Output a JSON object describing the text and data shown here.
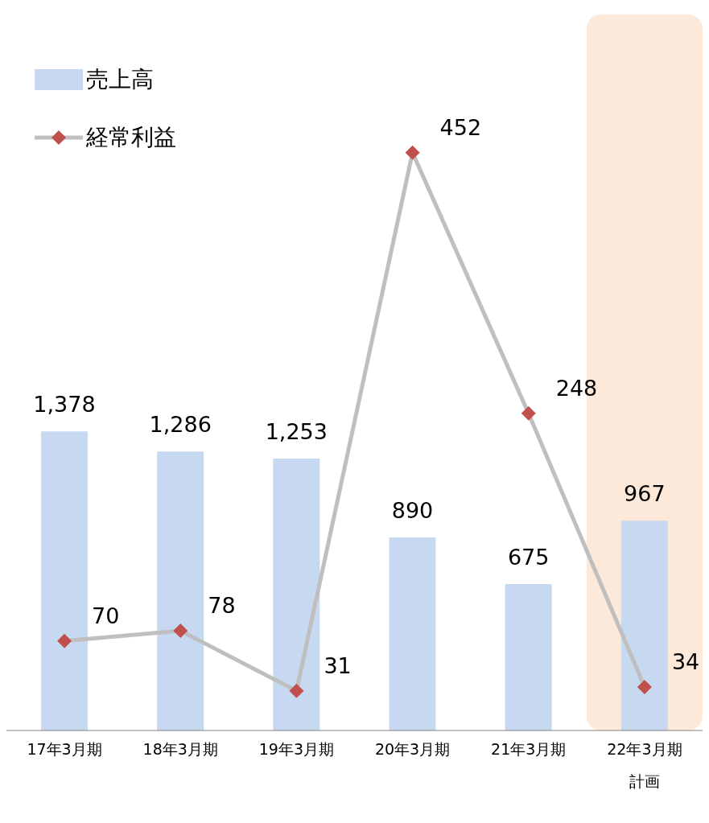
{
  "chart_data": {
    "type": "bar",
    "categories": [
      "17年3月期",
      "18年3月期",
      "19年3月期",
      "20年3月期",
      "21年3月期",
      "22年3月期計画"
    ],
    "series": [
      {
        "name": "売上高",
        "color": "#c6d9f0",
        "values": [
          1378,
          1286,
          1253,
          890,
          675,
          967
        ],
        "value_labels": [
          "1,378",
          "1,286",
          "1,253",
          "890",
          "675",
          "967"
        ]
      },
      {
        "name": "経常利益",
        "type": "line",
        "color": "#bfbfbf",
        "axis": "y2",
        "marker": "diamond",
        "values": [
          70,
          78,
          31,
          452,
          248,
          34
        ],
        "value_labels": [
          "70",
          "78",
          "31",
          "452",
          "248",
          "34"
        ]
      }
    ],
    "ylim": [
      0,
      3300
    ],
    "y2lim": [
      0,
      560
    ],
    "bands": [
      {
        "axis": "x",
        "from": "22年3月期計画",
        "to": "22年3月期計画",
        "color": "#fde9d9"
      }
    ],
    "legend": "top left"
  }
}
